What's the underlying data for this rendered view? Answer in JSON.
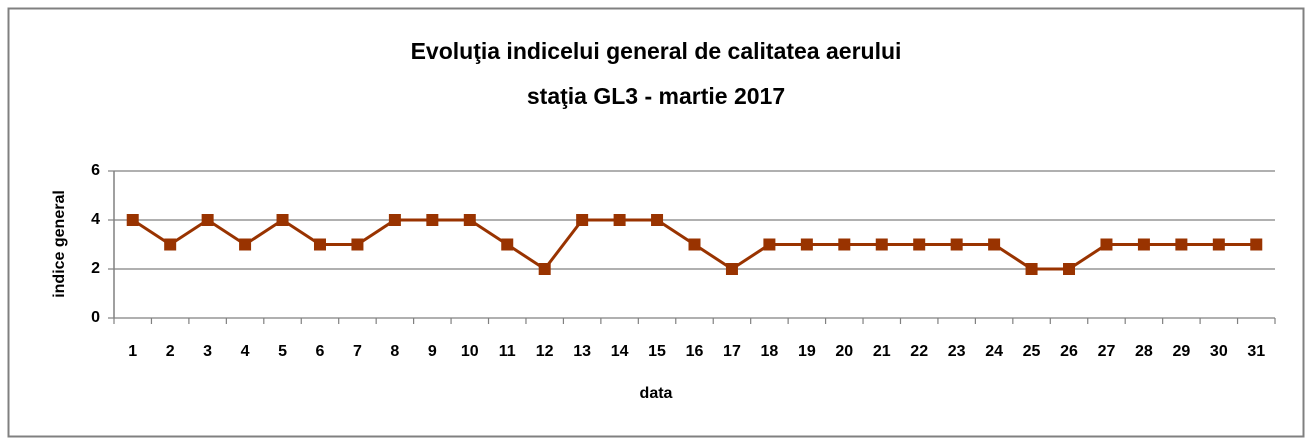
{
  "chart_data": {
    "type": "line",
    "title": [
      "Evoluţia indicelui general de calitatea aerului",
      "staţia GL3 - martie 2017"
    ],
    "x_label": "data",
    "y_label": "indice general",
    "categories": [
      "1",
      "2",
      "3",
      "4",
      "5",
      "6",
      "7",
      "8",
      "9",
      "10",
      "11",
      "12",
      "13",
      "14",
      "15",
      "16",
      "17",
      "18",
      "19",
      "20",
      "21",
      "22",
      "23",
      "24",
      "25",
      "26",
      "27",
      "28",
      "29",
      "30",
      "31"
    ],
    "series": [
      {
        "name": "indice general",
        "color": "#993300",
        "values": [
          4,
          3,
          4,
          3,
          4,
          3,
          3,
          4,
          4,
          4,
          3,
          2,
          4,
          4,
          4,
          3,
          2,
          3,
          3,
          3,
          3,
          3,
          3,
          3,
          2,
          2,
          3,
          3,
          3,
          3,
          3
        ]
      }
    ],
    "ylim": [
      0,
      6
    ],
    "yticks": [
      0,
      2,
      4,
      6
    ],
    "grid": true
  }
}
